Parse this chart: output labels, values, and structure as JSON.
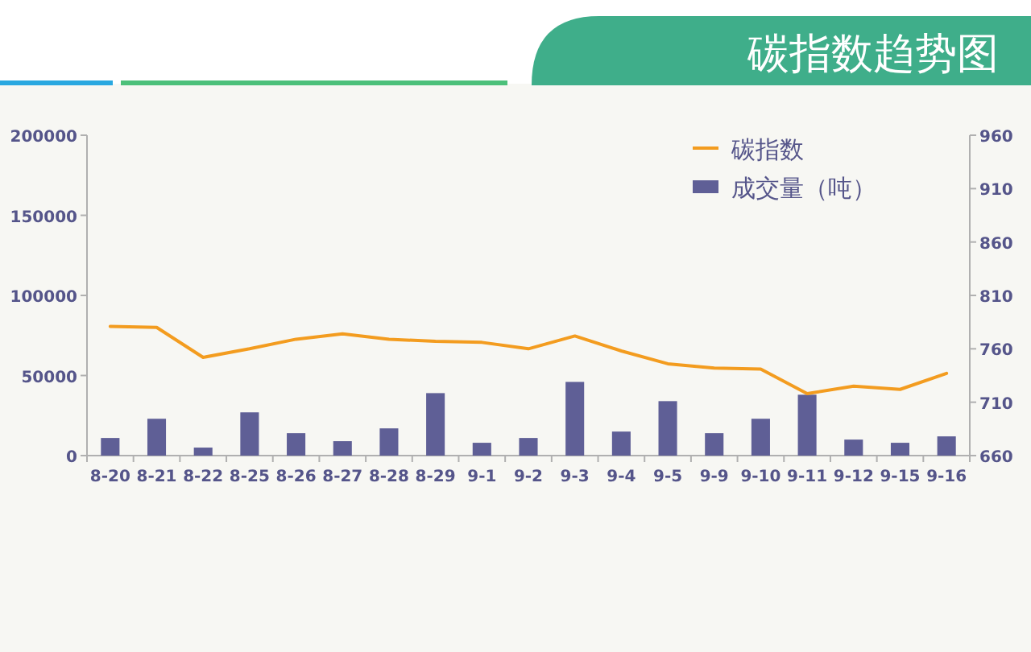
{
  "chart_data": {
    "type": "bar",
    "title": "碳指数趋势图",
    "categories": [
      "8-20",
      "8-21",
      "8-22",
      "8-25",
      "8-26",
      "8-27",
      "8-28",
      "8-29",
      "9-1",
      "9-2",
      "9-3",
      "9-4",
      "9-5",
      "9-9",
      "9-10",
      "9-11",
      "9-12",
      "9-15",
      "9-16"
    ],
    "series": [
      {
        "name": "碳指数",
        "type": "line",
        "axis": "y2",
        "color": "#f39c1f",
        "values": [
          781,
          780,
          752,
          760,
          769,
          774,
          769,
          767,
          766,
          760,
          772,
          758,
          746,
          742,
          741,
          718,
          725,
          722,
          737
        ]
      },
      {
        "name": "成交量（吨）",
        "color": "#5f5f96",
        "values": [
          11000,
          23000,
          5000,
          27000,
          14000,
          9000,
          17000,
          39000,
          8000,
          11000,
          46000,
          15000,
          34000,
          14000,
          23000,
          38000,
          10000,
          8000,
          12000
        ]
      }
    ],
    "ylim": [
      0,
      200000
    ],
    "yticks": [
      0,
      50000,
      100000,
      150000,
      200000
    ],
    "y2lim": [
      660,
      960
    ],
    "y2ticks": [
      660,
      710,
      760,
      810,
      860,
      910,
      960
    ],
    "legend": "top right"
  }
}
